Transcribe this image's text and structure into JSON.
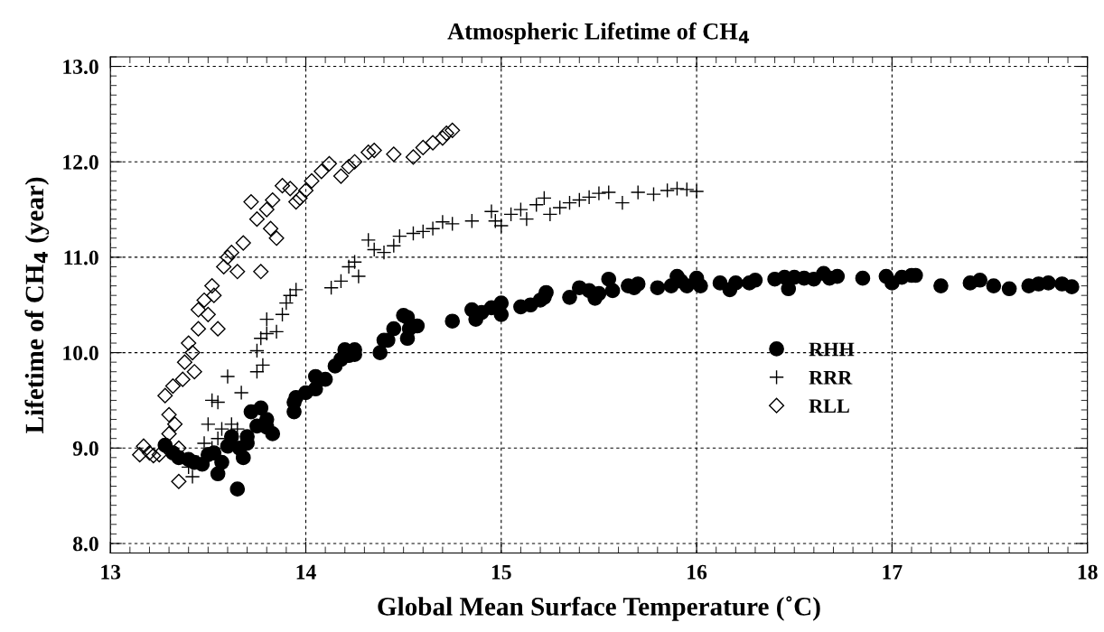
{
  "chart_data": {
    "type": "scatter",
    "title": "Atmospheric Lifetime of CH$_{4}$",
    "xlabel": "Global Mean Surface Temperature (˚C)",
    "ylabel": "Lifetime of CH$_{4}$ (year)",
    "xlim": [
      13,
      18
    ],
    "xticks": [
      13,
      14,
      15,
      16,
      17,
      18
    ],
    "ylim": [
      7.9,
      13.1
    ],
    "yticks": [
      {
        "value": 8,
        "label": "8.0"
      },
      {
        "value": 9,
        "label": "9.0"
      },
      {
        "value": 10,
        "label": "10.0"
      },
      {
        "value": 11,
        "label": "11.0"
      },
      {
        "value": 12,
        "label": "12.0"
      },
      {
        "value": 13,
        "label": "13.0"
      }
    ],
    "grid": true,
    "legend": "right",
    "series": [
      {
        "name": "RHH",
        "color": "#000000",
        "marker": "circle",
        "x": [
          13.28,
          13.32,
          13.35,
          13.4,
          13.43,
          13.47,
          13.5,
          13.53,
          13.55,
          13.57,
          13.6,
          13.62,
          13.65,
          13.66,
          13.68,
          13.7,
          13.7,
          13.72,
          13.75,
          13.77,
          13.8,
          13.8,
          13.83,
          13.94,
          13.94,
          13.95,
          14.0,
          14.05,
          14.05,
          14.1,
          14.15,
          14.18,
          14.2,
          14.22,
          14.25,
          14.25,
          14.38,
          14.4,
          14.42,
          14.45,
          14.5,
          14.52,
          14.53,
          14.52,
          14.57,
          14.75,
          14.85,
          14.87,
          14.9,
          14.95,
          15.0,
          15.0,
          15.1,
          15.15,
          15.2,
          15.22,
          15.23,
          15.35,
          15.4,
          15.45,
          15.48,
          15.5,
          15.55,
          15.57,
          15.65,
          15.68,
          15.7,
          15.8,
          15.87,
          15.9,
          15.92,
          15.95,
          16.0,
          16.02,
          16.12,
          16.17,
          16.2,
          16.27,
          16.3,
          16.4,
          16.45,
          16.47,
          16.5,
          16.55,
          16.6,
          16.65,
          16.68,
          16.72,
          16.85,
          16.97,
          17.0,
          17.05,
          17.1,
          17.12,
          17.25,
          17.4,
          17.45,
          17.52,
          17.6,
          17.7,
          17.75,
          17.8,
          17.87,
          17.92
        ],
        "values": [
          9.03,
          8.95,
          8.9,
          8.88,
          8.85,
          8.83,
          8.93,
          8.95,
          8.73,
          8.85,
          9.02,
          9.12,
          8.57,
          9.0,
          8.9,
          9.05,
          9.12,
          9.38,
          9.23,
          9.42,
          9.3,
          9.22,
          9.15,
          9.38,
          9.48,
          9.53,
          9.58,
          9.62,
          9.75,
          9.72,
          9.86,
          9.93,
          10.03,
          9.97,
          10.03,
          9.98,
          10.0,
          10.13,
          10.13,
          10.25,
          10.39,
          10.37,
          10.25,
          10.15,
          10.28,
          10.33,
          10.45,
          10.35,
          10.42,
          10.47,
          10.4,
          10.52,
          10.48,
          10.5,
          10.55,
          10.58,
          10.63,
          10.58,
          10.68,
          10.65,
          10.57,
          10.62,
          10.77,
          10.65,
          10.7,
          10.68,
          10.72,
          10.68,
          10.7,
          10.8,
          10.75,
          10.7,
          10.78,
          10.7,
          10.73,
          10.66,
          10.73,
          10.73,
          10.76,
          10.77,
          10.79,
          10.67,
          10.79,
          10.78,
          10.77,
          10.83,
          10.78,
          10.8,
          10.78,
          10.8,
          10.73,
          10.79,
          10.81,
          10.81,
          10.7,
          10.73,
          10.76,
          10.7,
          10.67,
          10.7,
          10.72,
          10.73,
          10.72,
          10.69
        ]
      },
      {
        "name": "RRR",
        "color": "#000000",
        "marker": "cross",
        "x": [
          13.4,
          13.42,
          13.45,
          13.48,
          13.52,
          13.55,
          13.5,
          13.52,
          13.55,
          13.57,
          13.6,
          13.62,
          13.65,
          13.67,
          13.75,
          13.75,
          13.77,
          13.8,
          13.8,
          13.78,
          13.85,
          13.88,
          13.9,
          13.92,
          13.95,
          14.13,
          14.18,
          14.22,
          14.25,
          14.27,
          14.32,
          14.35,
          14.4,
          14.45,
          14.48,
          14.55,
          14.6,
          14.65,
          14.7,
          14.75,
          14.85,
          14.95,
          14.97,
          15.0,
          15.05,
          15.1,
          15.13,
          15.18,
          15.22,
          15.25,
          15.3,
          15.35,
          15.4,
          15.45,
          15.5,
          15.55,
          15.62,
          15.7,
          15.78,
          15.85,
          15.9,
          15.95,
          16.0
        ],
        "values": [
          8.8,
          8.7,
          8.85,
          9.05,
          9.0,
          9.1,
          9.25,
          9.5,
          9.48,
          9.2,
          9.75,
          9.25,
          9.2,
          9.58,
          9.8,
          10.02,
          10.15,
          10.35,
          10.2,
          9.87,
          10.22,
          10.4,
          10.52,
          10.6,
          10.66,
          10.68,
          10.75,
          10.9,
          10.95,
          10.8,
          11.18,
          11.08,
          11.05,
          11.12,
          11.22,
          11.25,
          11.27,
          11.3,
          11.37,
          11.35,
          11.38,
          11.48,
          11.38,
          11.33,
          11.45,
          11.5,
          11.4,
          11.55,
          11.62,
          11.45,
          11.52,
          11.57,
          11.6,
          11.63,
          11.67,
          11.68,
          11.57,
          11.68,
          11.66,
          11.7,
          11.72,
          11.71,
          11.69
        ]
      },
      {
        "name": "RLL",
        "color": "#000000",
        "marker": "diamond",
        "x": [
          13.15,
          13.17,
          13.2,
          13.22,
          13.25,
          13.28,
          13.3,
          13.28,
          13.3,
          13.32,
          13.33,
          13.35,
          13.35,
          13.37,
          13.38,
          13.4,
          13.42,
          13.43,
          13.45,
          13.45,
          13.48,
          13.5,
          13.52,
          13.53,
          13.55,
          13.58,
          13.6,
          13.62,
          13.65,
          13.68,
          13.72,
          13.75,
          13.77,
          13.8,
          13.82,
          13.83,
          13.85,
          13.88,
          13.92,
          13.95,
          13.97,
          14.0,
          14.03,
          14.08,
          14.12,
          14.18,
          14.22,
          14.25,
          14.32,
          14.35,
          14.45,
          14.55,
          14.6,
          14.65,
          14.7,
          14.72,
          14.75
        ],
        "values": [
          8.93,
          9.02,
          8.95,
          8.92,
          8.93,
          null,
          9.15,
          9.55,
          9.35,
          9.65,
          9.25,
          9.0,
          8.65,
          9.72,
          9.9,
          10.1,
          10.0,
          9.8,
          10.25,
          10.45,
          10.55,
          10.4,
          10.7,
          10.6,
          10.25,
          10.9,
          11.0,
          11.05,
          10.85,
          11.15,
          11.58,
          11.4,
          10.85,
          11.5,
          11.3,
          11.6,
          11.2,
          11.75,
          11.72,
          11.58,
          11.62,
          11.7,
          11.8,
          11.9,
          11.98,
          11.85,
          11.95,
          12.0,
          12.1,
          12.12,
          12.08,
          12.05,
          12.15,
          12.2,
          12.25,
          12.3,
          12.33
        ]
      }
    ]
  }
}
